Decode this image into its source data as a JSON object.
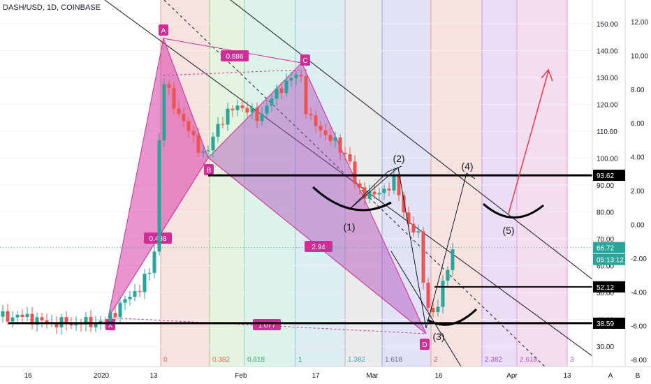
{
  "title": "DASH/USD, 1D, COINBASE",
  "chart_data": {
    "type": "candlestick",
    "title": "DASH/USD, 1D, COINBASE",
    "xlabel": "",
    "ylabel": "",
    "left_scale_label": "A",
    "right_scale_label": "B",
    "x_tick_labels": [
      "16",
      "2020",
      "13",
      "Feb",
      "17",
      "Mar",
      "16",
      "Apr",
      "13"
    ],
    "y_right": {
      "range": [
        25,
        155
      ],
      "ticks": [
        30,
        40,
        50,
        60,
        70,
        80,
        90,
        100,
        110,
        120,
        130,
        140,
        150
      ],
      "tick_labels": [
        "30.00",
        "40.00",
        "50.00",
        "60.00",
        "70.00",
        "80.00",
        "90.00",
        "100.00",
        "110.00",
        "120.00",
        "130.00",
        "140.00",
        "150.00"
      ]
    },
    "y_pct": {
      "ticks": [
        12,
        10,
        8,
        6,
        4,
        2,
        0,
        -2,
        -4,
        -6,
        -8
      ],
      "tick_labels": [
        "12.00",
        "10.00",
        "8.00",
        "6.00",
        "4.00",
        "2.00",
        "0.00",
        "-2.00",
        "-4.00",
        "-6.00",
        "-8.00"
      ]
    },
    "price_badges": [
      {
        "value": "93.62",
        "color": "#000000"
      },
      {
        "value": "66.72",
        "color": "#26a69a"
      },
      {
        "value": "05:13:12",
        "color": "#26a69a"
      },
      {
        "value": "52.12",
        "color": "#000000"
      },
      {
        "value": "38.59",
        "color": "#000000"
      }
    ],
    "horizontal_levels": [
      93.62,
      52.12,
      38.59
    ],
    "current_price": 66.72,
    "harmonic_points": [
      "X",
      "A",
      "B",
      "C",
      "D"
    ],
    "harmonic_ratios": [
      "0.886",
      "0.438",
      "2.94",
      "1.077"
    ],
    "fib_time_zone_labels": [
      "0",
      "0.382",
      "0.618",
      "1",
      "1.382",
      "1.618",
      "2",
      "2.382",
      "2.618",
      "3"
    ],
    "wave_labels": [
      "(1)",
      "(2)",
      "(3)",
      "(4)",
      "(5)"
    ],
    "colors": {
      "up": "#26a69a",
      "down": "#ef5350",
      "harmonic": "#cf2e97",
      "projection": "#f23645"
    }
  }
}
